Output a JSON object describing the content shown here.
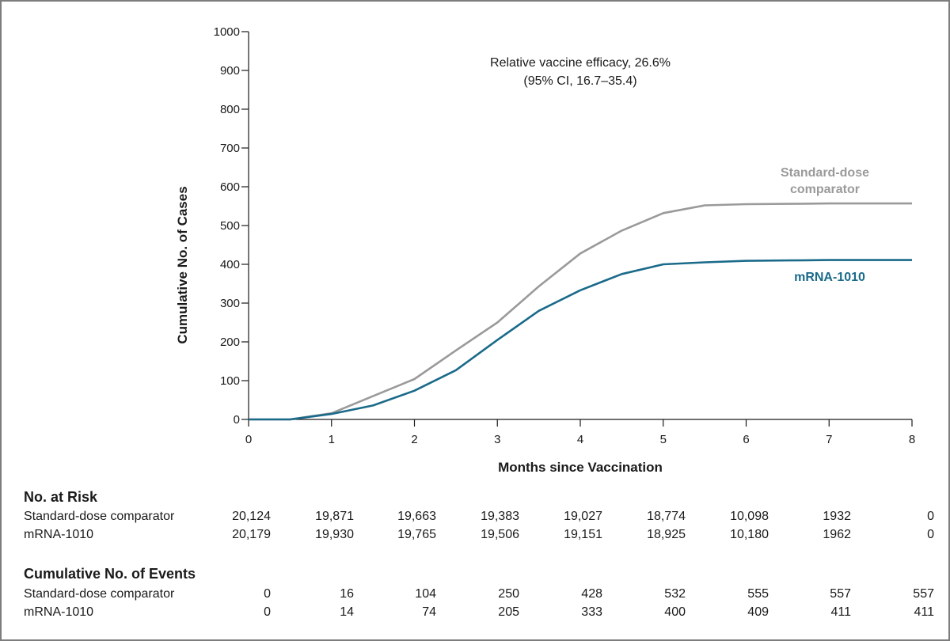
{
  "chart_data": {
    "type": "line",
    "ylabel": "Cumulative No. of Cases",
    "xlabel": "Months since Vaccination",
    "xlim": [
      0,
      8
    ],
    "ylim": [
      0,
      1000
    ],
    "x_ticks": [
      "0",
      "1",
      "2",
      "3",
      "4",
      "5",
      "6",
      "7",
      "8"
    ],
    "y_ticks": [
      "0",
      "100",
      "200",
      "300",
      "400",
      "500",
      "600",
      "700",
      "800",
      "900",
      "1000"
    ],
    "annotation": [
      "Relative vaccine efficacy, 26.6%",
      "(95% CI, 16.7–35.4)"
    ],
    "grid": false,
    "legend": "inline labels near line ends",
    "series": [
      {
        "name_lines": [
          "Standard-dose",
          "comparator"
        ],
        "color": "#9a9a9a",
        "x": [
          0,
          0.5,
          1,
          1.5,
          2,
          2.5,
          3,
          3.5,
          4,
          4.5,
          5,
          5.5,
          6,
          6.5,
          7,
          7.5,
          8
        ],
        "y": [
          0,
          0,
          16,
          60,
          104,
          178,
          250,
          343,
          428,
          487,
          532,
          552,
          555,
          556,
          557,
          557,
          557
        ]
      },
      {
        "name_lines": [
          "mRNA-1010"
        ],
        "color": "#1a6a8a",
        "x": [
          0,
          0.5,
          1,
          1.5,
          2,
          2.5,
          3,
          3.5,
          4,
          4.5,
          5,
          5.5,
          6,
          6.5,
          7,
          7.5,
          8
        ],
        "y": [
          0,
          0,
          14,
          36,
          74,
          127,
          205,
          280,
          333,
          375,
          400,
          405,
          409,
          410,
          411,
          411,
          411
        ]
      }
    ]
  },
  "risk_table": {
    "title": "No. at Risk",
    "rows": [
      {
        "label": "Standard-dose comparator",
        "values": [
          "20,124",
          "19,871",
          "19,663",
          "19,383",
          "19,027",
          "18,774",
          "10,098",
          "1932",
          "0"
        ]
      },
      {
        "label": "mRNA-1010",
        "values": [
          "20,179",
          "19,930",
          "19,765",
          "19,506",
          "19,151",
          "18,925",
          "10,180",
          "1962",
          "0"
        ]
      }
    ]
  },
  "events_table": {
    "title": "Cumulative No. of Events",
    "rows": [
      {
        "label": "Standard-dose comparator",
        "values": [
          "0",
          "16",
          "104",
          "250",
          "428",
          "532",
          "555",
          "557",
          "557"
        ]
      },
      {
        "label": "mRNA-1010",
        "values": [
          "0",
          "14",
          "74",
          "205",
          "333",
          "400",
          "409",
          "411",
          "411"
        ]
      }
    ]
  }
}
